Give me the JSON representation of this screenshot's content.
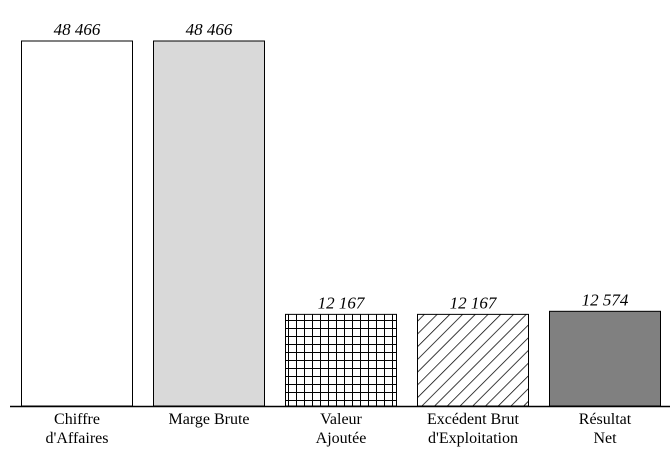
{
  "chart_data": {
    "type": "bar",
    "categories": [
      "Chiffre\nd'Affaires",
      "Marge Brute",
      "Valeur\nAjoutée",
      "Excédent Brut\nd'Exploitation",
      "Résultat\nNet"
    ],
    "values": [
      48466,
      48466,
      12167,
      12167,
      12574
    ],
    "value_labels": [
      "48 466",
      "48 466",
      "12 167",
      "12 167",
      "12 574"
    ],
    "colors": [
      "#ffffff",
      "#d9d9d9",
      "#ffffff",
      "#ffffff",
      "#808080"
    ],
    "patterns": [
      null,
      null,
      "grid",
      "diagonal",
      null
    ]
  }
}
